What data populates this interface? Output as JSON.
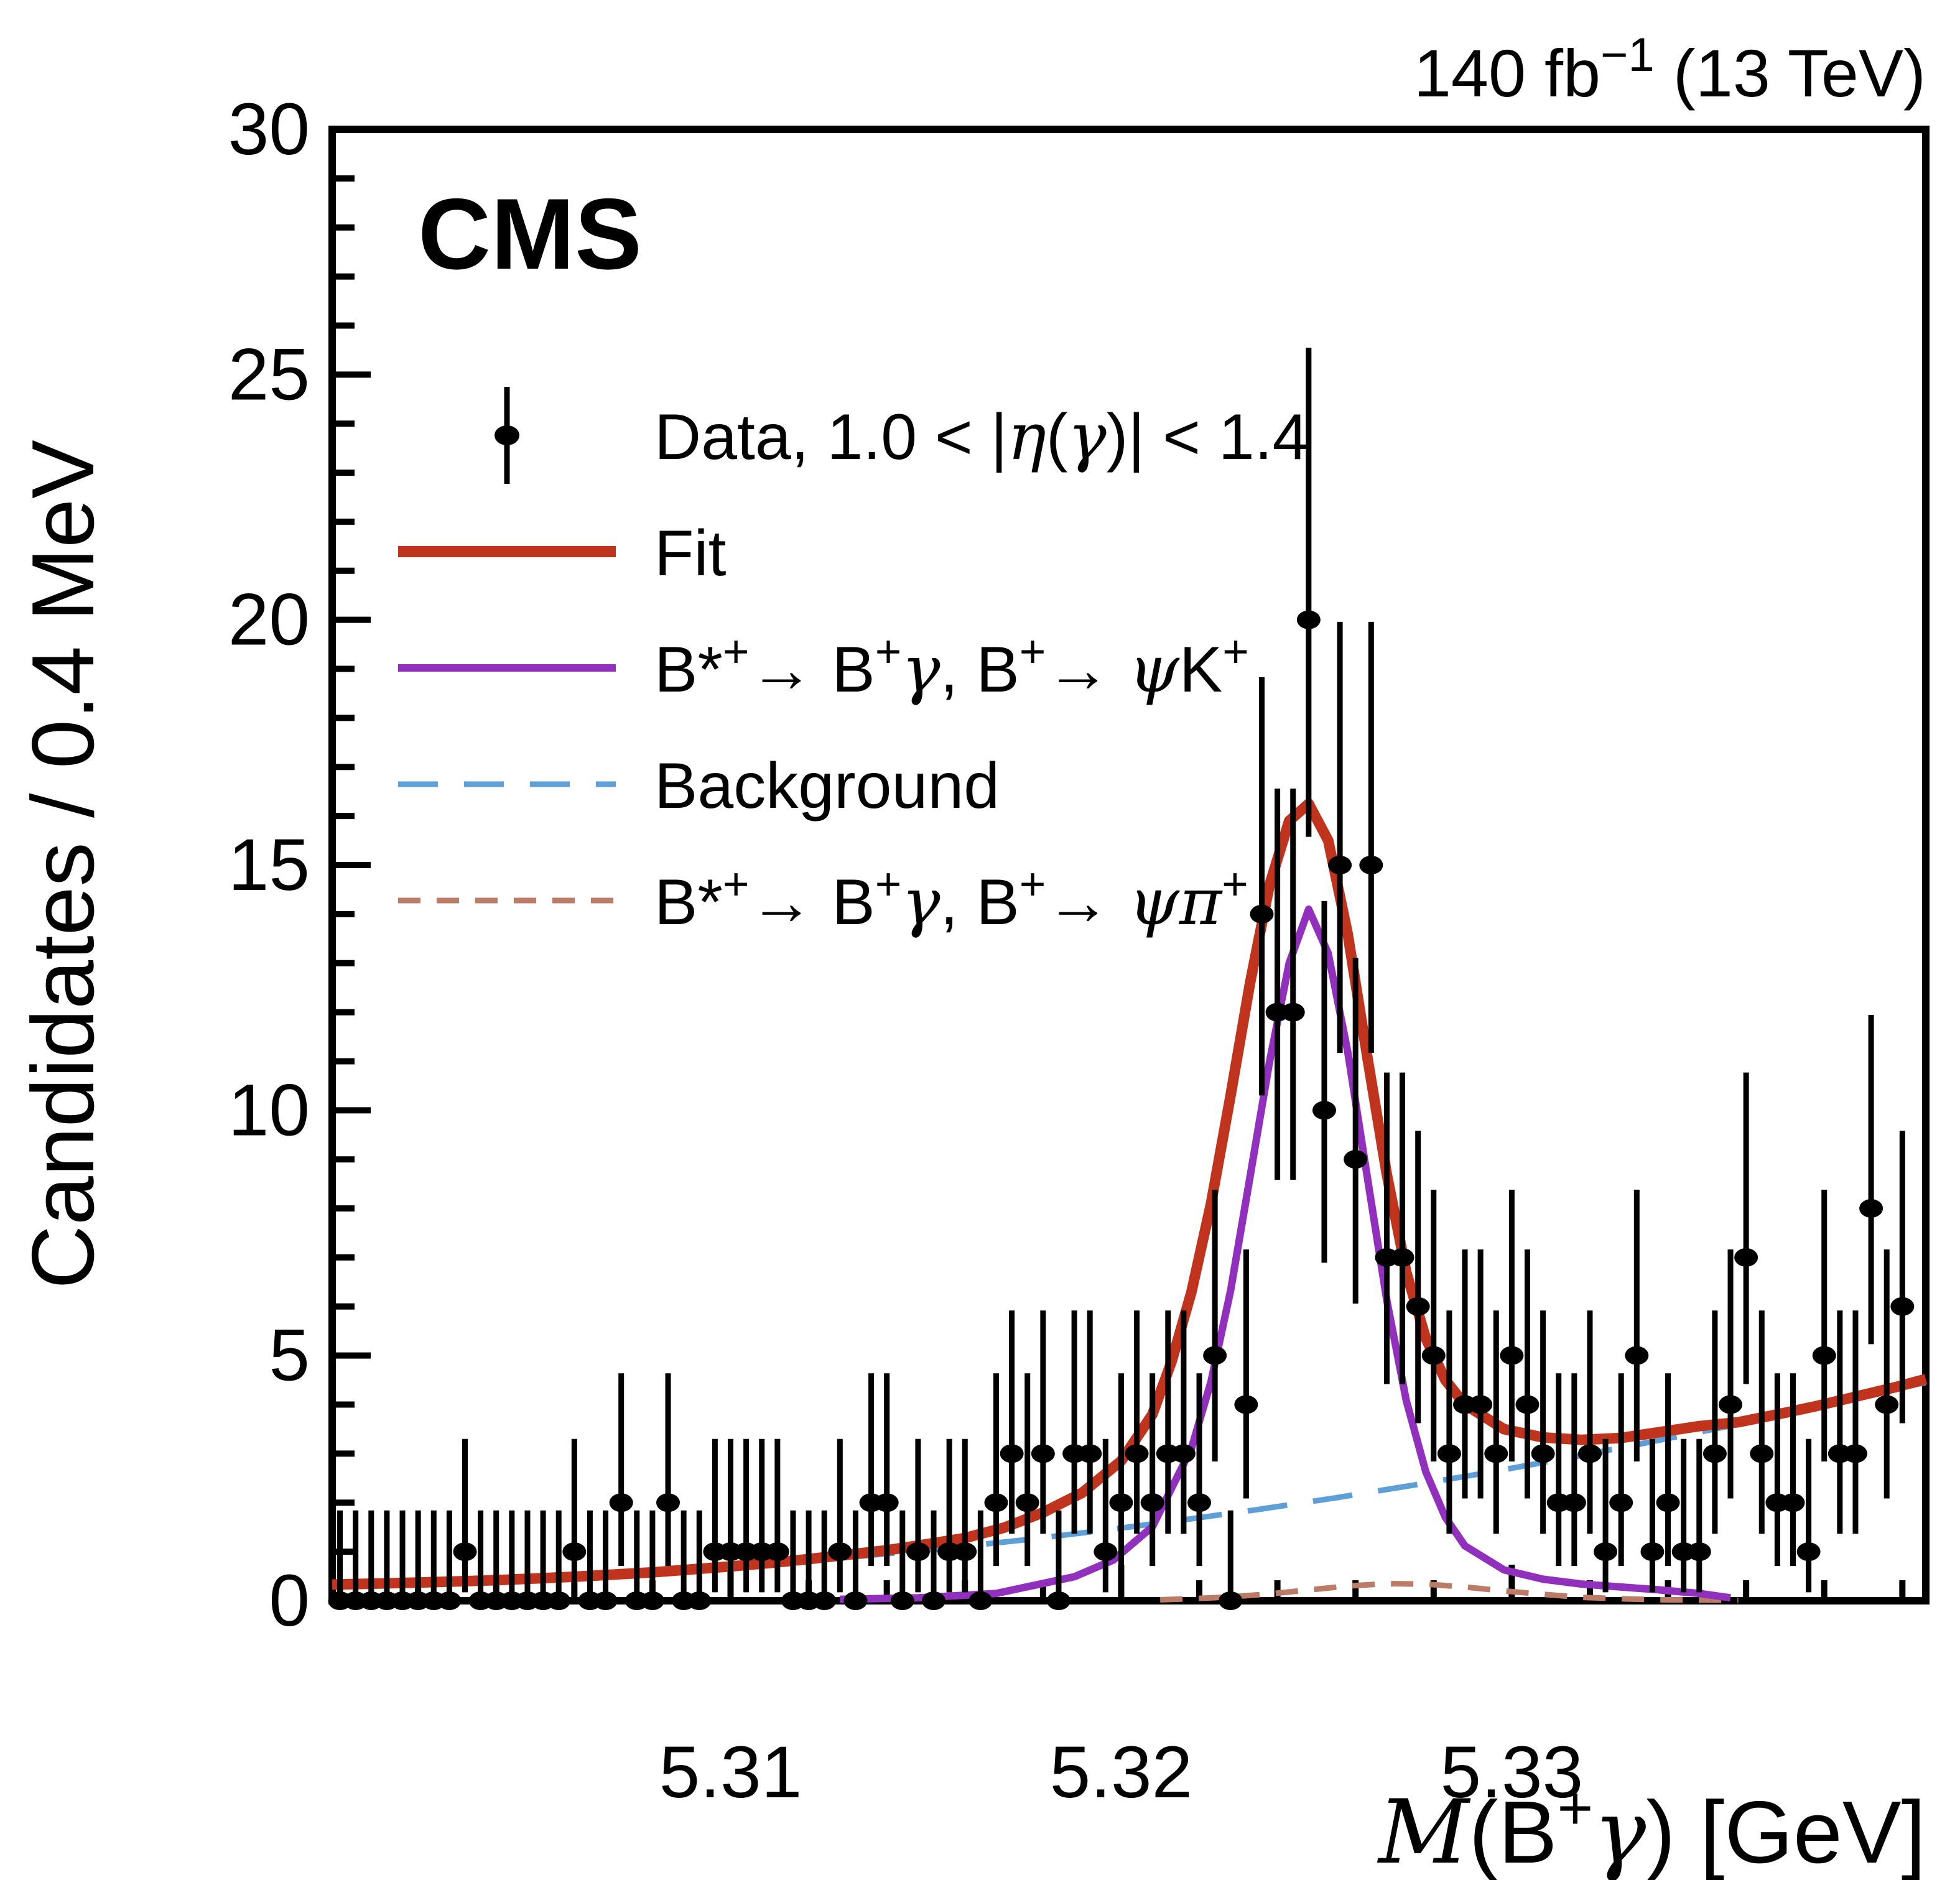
{
  "header": {
    "experiment_label": "CMS",
    "luminosity_label": "140 fb−1 (13 TeV)",
    "luminosity_rich": [
      {
        "t": "140 fb"
      },
      {
        "s": "−1"
      },
      {
        "t": " (13 TeV)"
      }
    ]
  },
  "colors": {
    "fit": "#c0341d",
    "signal_kaon": "#9130bd",
    "background": "#5e9fd8",
    "signal_pion": "#bc7b66",
    "data": "#000000",
    "frame": "#000000"
  },
  "legend": {
    "entries": [
      {
        "key": "data",
        "style": "marker",
        "label": "Data, 1.0 < |η(γ)| < 1.4",
        "rich": [
          {
            "t": "Data, 1.0 < |"
          },
          {
            "g": "η"
          },
          {
            "t": "("
          },
          {
            "g": "γ"
          },
          {
            "t": ")| < 1.4"
          }
        ]
      },
      {
        "key": "fit",
        "style": "line-thick",
        "color": "#c0341d",
        "label": "Fit",
        "rich": [
          {
            "t": "Fit"
          }
        ]
      },
      {
        "key": "signal_kaon",
        "style": "line",
        "color": "#9130bd",
        "label": "B*+ → B+γ, B+ → ψK+",
        "rich": [
          {
            "t": "B*"
          },
          {
            "s": "+"
          },
          {
            "t": "→ B"
          },
          {
            "s": "+"
          },
          {
            "g": "γ"
          },
          {
            "t": ", B"
          },
          {
            "s": "+"
          },
          {
            "t": "→ "
          },
          {
            "g": "ψ"
          },
          {
            "t": "K"
          },
          {
            "s": "+"
          }
        ]
      },
      {
        "key": "background",
        "style": "dash-long",
        "color": "#5e9fd8",
        "label": "Background",
        "rich": [
          {
            "t": "Background"
          }
        ]
      },
      {
        "key": "signal_pion",
        "style": "dash-short",
        "color": "#bc7b66",
        "label": "B*+ → B+γ, B+ → ψπ+",
        "rich": [
          {
            "t": "B*"
          },
          {
            "s": "+"
          },
          {
            "t": "→ B"
          },
          {
            "s": "+"
          },
          {
            "g": "γ"
          },
          {
            "t": ", B"
          },
          {
            "s": "+"
          },
          {
            "t": "→ "
          },
          {
            "g": "ψ"
          },
          {
            "g": "π"
          },
          {
            "s": "+"
          }
        ]
      }
    ]
  },
  "chart_data": {
    "type": "scatter",
    "title": "",
    "xlabel": "M(B+γ) [GeV]",
    "xlabel_rich": [
      {
        "i": "M"
      },
      {
        "t": "(B"
      },
      {
        "s": "+"
      },
      {
        "g": "γ"
      },
      {
        "t": ") [GeV]"
      }
    ],
    "ylabel": "Candidates / 0.4 MeV",
    "xlim": [
      5.2998,
      5.3406
    ],
    "ylim": [
      0,
      30
    ],
    "grid": false,
    "legend_position": "upper-left-inside",
    "x_major_ticks": [
      {
        "m": 5.31,
        "label": "5.31"
      },
      {
        "m": 5.32,
        "label": "5.32"
      },
      {
        "m": 5.33,
        "label": "5.33"
      }
    ],
    "x_minor_step": 0.002,
    "y_major_ticks": [
      {
        "v": 0,
        "label": "0"
      },
      {
        "v": 5,
        "label": "5"
      },
      {
        "v": 10,
        "label": "10"
      },
      {
        "v": 15,
        "label": "15"
      },
      {
        "v": 20,
        "label": "20"
      },
      {
        "v": 25,
        "label": "25"
      },
      {
        "v": 30,
        "label": "30"
      }
    ],
    "y_minor_step": 1,
    "histogram": {
      "bin_width_mev": 0.4,
      "x_start": 5.3,
      "x_step": 0.0004,
      "error_model": "poisson_garwood_68",
      "counts": [
        0,
        0,
        0,
        0,
        0,
        0,
        0,
        0,
        1,
        0,
        0,
        0,
        0,
        0,
        0,
        1,
        0,
        0,
        2,
        0,
        0,
        2,
        0,
        0,
        1,
        1,
        1,
        1,
        1,
        0,
        0,
        0,
        1,
        0,
        2,
        2,
        0,
        1,
        0,
        1,
        1,
        0,
        2,
        3,
        2,
        3,
        0,
        3,
        3,
        1,
        2,
        3,
        2,
        3,
        3,
        2,
        5,
        0,
        4,
        14,
        12,
        12,
        20,
        10,
        15,
        9,
        15,
        7,
        7,
        6,
        5,
        3,
        4,
        4,
        3,
        5,
        4,
        3,
        2,
        2,
        3,
        1,
        2,
        5,
        1,
        2,
        1,
        1,
        3,
        4,
        7,
        3,
        2,
        2,
        1,
        5,
        3,
        3,
        8,
        4,
        6
      ]
    },
    "curves": {
      "fit": {
        "name": "Fit",
        "points": [
          [
            5.2998,
            0.33
          ],
          [
            5.302,
            0.37
          ],
          [
            5.304,
            0.42
          ],
          [
            5.306,
            0.49
          ],
          [
            5.308,
            0.58
          ],
          [
            5.31,
            0.7
          ],
          [
            5.311,
            0.77
          ],
          [
            5.312,
            0.85
          ],
          [
            5.313,
            0.94
          ],
          [
            5.314,
            1.03
          ],
          [
            5.315,
            1.15
          ],
          [
            5.316,
            1.28
          ],
          [
            5.317,
            1.49
          ],
          [
            5.318,
            1.8
          ],
          [
            5.319,
            2.2
          ],
          [
            5.32,
            2.85
          ],
          [
            5.3208,
            3.8
          ],
          [
            5.3213,
            4.9
          ],
          [
            5.3218,
            6.3
          ],
          [
            5.3223,
            8.1
          ],
          [
            5.3228,
            10.3
          ],
          [
            5.3233,
            12.6
          ],
          [
            5.3238,
            14.6
          ],
          [
            5.3243,
            15.9
          ],
          [
            5.3248,
            16.25
          ],
          [
            5.3253,
            15.5
          ],
          [
            5.3258,
            13.6
          ],
          [
            5.3263,
            11.1
          ],
          [
            5.3268,
            8.7
          ],
          [
            5.3273,
            6.7
          ],
          [
            5.3278,
            5.35
          ],
          [
            5.3283,
            4.5
          ],
          [
            5.3288,
            4.0
          ],
          [
            5.3298,
            3.5
          ],
          [
            5.3308,
            3.33
          ],
          [
            5.3318,
            3.28
          ],
          [
            5.3328,
            3.32
          ],
          [
            5.3338,
            3.44
          ],
          [
            5.3348,
            3.56
          ],
          [
            5.3358,
            3.64
          ],
          [
            5.3368,
            3.8
          ],
          [
            5.3378,
            3.97
          ],
          [
            5.3388,
            4.16
          ],
          [
            5.3398,
            4.35
          ],
          [
            5.3406,
            4.52
          ]
        ]
      },
      "signal_kaon": {
        "name": "B*+ → B+γ, B+ → ψK+",
        "points": [
          [
            5.3128,
            0.03
          ],
          [
            5.3148,
            0.06
          ],
          [
            5.3168,
            0.15
          ],
          [
            5.3188,
            0.49
          ],
          [
            5.3198,
            0.83
          ],
          [
            5.3208,
            1.51
          ],
          [
            5.3218,
            3.11
          ],
          [
            5.3223,
            4.47
          ],
          [
            5.3228,
            6.32
          ],
          [
            5.3233,
            8.65
          ],
          [
            5.3238,
            11.0
          ],
          [
            5.3243,
            13.0
          ],
          [
            5.3248,
            14.1
          ],
          [
            5.3253,
            13.2
          ],
          [
            5.3258,
            11.2
          ],
          [
            5.3263,
            8.65
          ],
          [
            5.3268,
            6.13
          ],
          [
            5.3273,
            4.08
          ],
          [
            5.3278,
            2.63
          ],
          [
            5.3283,
            1.7
          ],
          [
            5.3288,
            1.12
          ],
          [
            5.3298,
            0.63
          ],
          [
            5.3308,
            0.44
          ],
          [
            5.3318,
            0.34
          ],
          [
            5.3328,
            0.28
          ],
          [
            5.3338,
            0.22
          ],
          [
            5.3348,
            0.15
          ],
          [
            5.3356,
            0.06
          ]
        ]
      },
      "background": {
        "name": "Background",
        "points": [
          [
            5.3115,
            0.78
          ],
          [
            5.3135,
            0.92
          ],
          [
            5.3155,
            1.07
          ],
          [
            5.3175,
            1.24
          ],
          [
            5.3195,
            1.43
          ],
          [
            5.3215,
            1.64
          ],
          [
            5.3235,
            1.86
          ],
          [
            5.3255,
            2.1
          ],
          [
            5.3275,
            2.36
          ],
          [
            5.3295,
            2.63
          ],
          [
            5.3315,
            2.92
          ],
          [
            5.3335,
            3.23
          ],
          [
            5.3355,
            3.55
          ],
          [
            5.3375,
            3.9
          ],
          [
            5.3395,
            4.26
          ],
          [
            5.3406,
            4.45
          ]
        ]
      },
      "signal_pion": {
        "name": "B*+ → B+γ, B+ → ψπ+",
        "points": [
          [
            5.321,
            0.02
          ],
          [
            5.3218,
            0.04
          ],
          [
            5.3228,
            0.08
          ],
          [
            5.3238,
            0.14
          ],
          [
            5.3248,
            0.22
          ],
          [
            5.3258,
            0.3
          ],
          [
            5.3268,
            0.35
          ],
          [
            5.3278,
            0.34
          ],
          [
            5.3288,
            0.28
          ],
          [
            5.3298,
            0.2
          ],
          [
            5.3308,
            0.13
          ],
          [
            5.3318,
            0.07
          ],
          [
            5.3328,
            0.04
          ],
          [
            5.3338,
            0.02
          ],
          [
            5.3358,
            0.01
          ]
        ]
      }
    }
  }
}
